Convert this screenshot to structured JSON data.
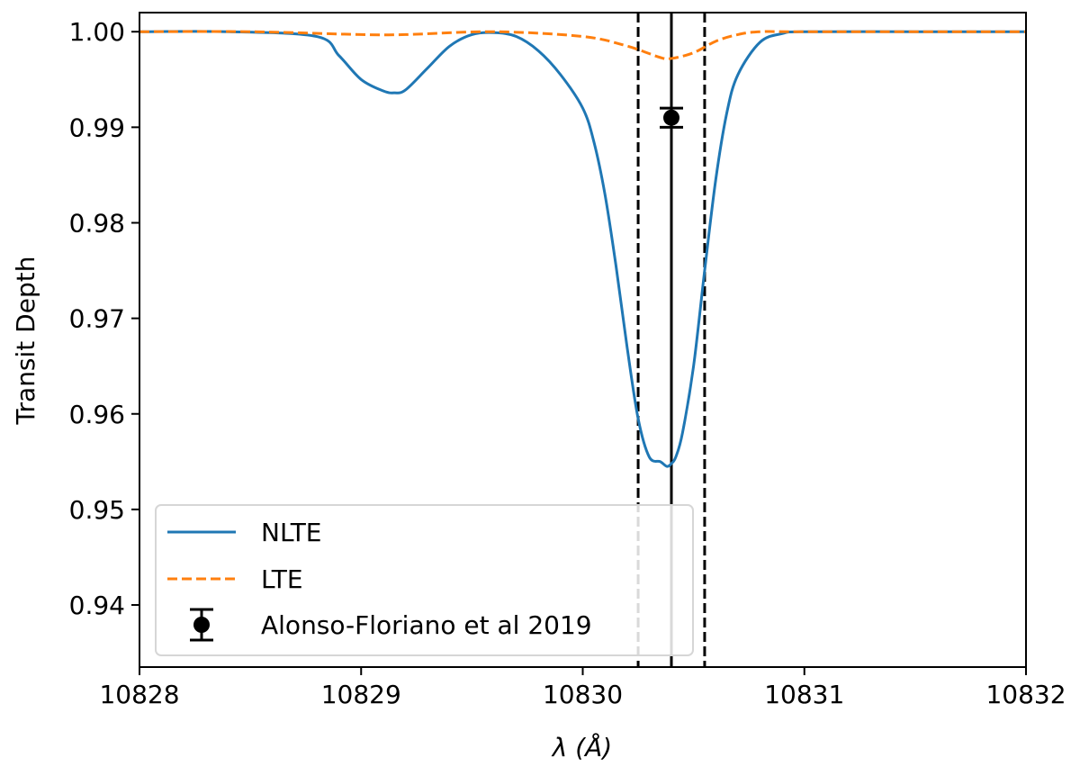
{
  "chart_data": {
    "type": "line",
    "title": "",
    "xlabel": "λ (Å)",
    "ylabel": "Transit Depth",
    "xlim": [
      10828,
      10832
    ],
    "ylim": [
      0.9335,
      1.002
    ],
    "x_ticks": [
      "10828",
      "10829",
      "10830",
      "10831",
      "10832"
    ],
    "y_ticks": [
      "0.94",
      "0.95",
      "0.96",
      "0.97",
      "0.98",
      "0.99",
      "1.00"
    ],
    "grid": false,
    "legend_position": "lower-left",
    "series": [
      {
        "name": "NLTE",
        "style": "solid",
        "color": "#1f77b4",
        "x": [
          10828.0,
          10828.4,
          10828.8,
          10828.9,
          10829.0,
          10829.1,
          10829.15,
          10829.2,
          10829.3,
          10829.4,
          10829.5,
          10829.6,
          10829.7,
          10829.8,
          10829.9,
          10830.0,
          10830.05,
          10830.1,
          10830.15,
          10830.2,
          10830.25,
          10830.3,
          10830.35,
          10830.38,
          10830.4,
          10830.42,
          10830.45,
          10830.5,
          10830.55,
          10830.6,
          10830.65,
          10830.7,
          10830.8,
          10830.9,
          10831.0,
          10831.5,
          10832.0
        ],
        "y": [
          1.0,
          1.0,
          0.9995,
          0.9975,
          0.995,
          0.9938,
          0.9936,
          0.9939,
          0.9962,
          0.9985,
          0.9997,
          0.9999,
          0.9995,
          0.998,
          0.9955,
          0.992,
          0.9885,
          0.983,
          0.9755,
          0.967,
          0.9595,
          0.9555,
          0.955,
          0.9545,
          0.9548,
          0.9555,
          0.958,
          0.965,
          0.975,
          0.9845,
          0.9915,
          0.9955,
          0.9989,
          0.9998,
          1.0,
          1.0,
          1.0
        ]
      },
      {
        "name": "LTE",
        "style": "dashed",
        "color": "#ff7f0e",
        "x": [
          10828.0,
          10828.5,
          10829.0,
          10829.2,
          10829.6,
          10830.0,
          10830.2,
          10830.35,
          10830.4,
          10830.5,
          10830.6,
          10830.7,
          10830.8,
          10831.0,
          10832.0
        ],
        "y": [
          1.0,
          1.0,
          0.9997,
          0.9997,
          1.0,
          0.9995,
          0.9985,
          0.9973,
          0.9972,
          0.9978,
          0.999,
          0.9997,
          1.0,
          1.0,
          1.0
        ]
      }
    ],
    "points": [
      {
        "name": "Alonso-Floriano et al 2019",
        "x": 10830.4,
        "y": 0.991,
        "yerr": 0.001,
        "color": "#000000"
      }
    ],
    "vlines": [
      {
        "x": 10830.25,
        "style": "dashed",
        "color": "#000000"
      },
      {
        "x": 10830.4,
        "style": "solid",
        "color": "#000000"
      },
      {
        "x": 10830.55,
        "style": "dashed",
        "color": "#000000"
      }
    ]
  }
}
